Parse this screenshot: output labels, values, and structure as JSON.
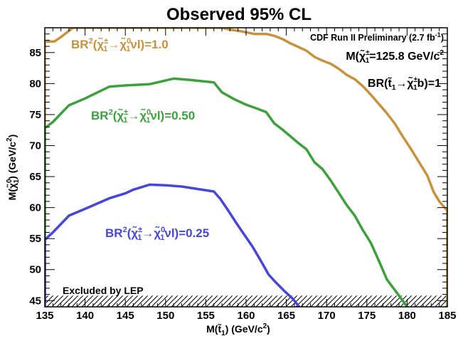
{
  "chart_data": {
    "type": "line",
    "title": "Observed 95% CL",
    "xlabel": "M(t̃1) (GeV/c2)",
    "ylabel": "M(χ̃01) (GeV/c2)",
    "xlim": [
      135,
      185
    ],
    "ylim": [
      44,
      89
    ],
    "xticks": [
      135,
      140,
      145,
      150,
      155,
      160,
      165,
      170,
      175,
      180,
      185
    ],
    "yticks": [
      45,
      50,
      55,
      60,
      65,
      70,
      75,
      80,
      85
    ],
    "grid": false,
    "annotations": {
      "experiment": "CDF Run II Preliminary (2.7 fb",
      "experiment_sup": "-1",
      "experiment_close": ")",
      "chargino_mass": "=125.8 GeV/c",
      "chargino_mass_sup": "2",
      "branching": "b)=1",
      "lep": "Excluded by LEP"
    },
    "excluded_region": {
      "name": "Excluded by LEP",
      "y_max": 45.8
    },
    "series": [
      {
        "name": "BR2(χ̃±1→χ̃01νl)=1.0",
        "label_value": "=1.0",
        "color": "#c8913c",
        "points": [
          [
            135,
            44
          ],
          [
            135,
            86.8
          ],
          [
            136.2,
            86.8
          ],
          [
            137,
            87.5
          ],
          [
            138.5,
            89
          ],
          [
            157,
            89
          ],
          [
            158,
            88.7
          ],
          [
            159.5,
            88.4
          ],
          [
            161,
            88
          ],
          [
            162.5,
            88
          ],
          [
            163.5,
            87.7
          ],
          [
            164.5,
            87.2
          ],
          [
            165.5,
            86.5
          ],
          [
            166.5,
            85.9
          ],
          [
            167.5,
            85.3
          ],
          [
            168.5,
            84.3
          ],
          [
            169.5,
            83.7
          ],
          [
            170.5,
            83.2
          ],
          [
            171.5,
            82.4
          ],
          [
            172.5,
            81.4
          ],
          [
            173.5,
            80.7
          ],
          [
            174.5,
            79.6
          ],
          [
            175.5,
            78.2
          ],
          [
            176.5,
            76.7
          ],
          [
            177.5,
            75.2
          ],
          [
            178.5,
            73.5
          ],
          [
            179.5,
            71.4
          ],
          [
            180.5,
            69.4
          ],
          [
            181.5,
            67.3
          ],
          [
            182.5,
            65.2
          ],
          [
            183.3,
            62.5
          ],
          [
            184,
            61
          ],
          [
            185,
            59.5
          ],
          [
            185,
            44
          ]
        ]
      },
      {
        "name": "BR2(χ̃±1→χ̃01νl)=0.50",
        "label_value": "=0.50",
        "color": "#3ca03c",
        "points": [
          [
            135,
            44
          ],
          [
            135,
            72.8
          ],
          [
            136,
            73.8
          ],
          [
            138,
            76.5
          ],
          [
            140,
            77.6
          ],
          [
            143,
            79.5
          ],
          [
            145,
            79.7
          ],
          [
            148,
            79.9
          ],
          [
            151,
            80.8
          ],
          [
            153,
            80.6
          ],
          [
            156,
            80.2
          ],
          [
            157,
            78.6
          ],
          [
            158.5,
            77.5
          ],
          [
            160,
            76.6
          ],
          [
            161.5,
            75.9
          ],
          [
            162.5,
            75.4
          ],
          [
            163.5,
            73.6
          ],
          [
            164.5,
            72.6
          ],
          [
            165.5,
            71.5
          ],
          [
            166.5,
            70.4
          ],
          [
            167.5,
            69.4
          ],
          [
            168.5,
            67.3
          ],
          [
            169.5,
            66.2
          ],
          [
            170.5,
            64.4
          ],
          [
            171.5,
            62.4
          ],
          [
            172.5,
            60.4
          ],
          [
            173.5,
            58.7
          ],
          [
            174.5,
            56.4
          ],
          [
            175.5,
            54.3
          ],
          [
            176.5,
            51.4
          ],
          [
            177.5,
            48.4
          ],
          [
            179,
            45.8
          ],
          [
            180,
            44
          ]
        ]
      },
      {
        "name": "BR2(χ̃±1→χ̃01νl)=0.25",
        "label_value": "=0.25",
        "color": "#4646dc",
        "points": [
          [
            135,
            44
          ],
          [
            135,
            54.8
          ],
          [
            136,
            56
          ],
          [
            138,
            58.7
          ],
          [
            140,
            59.8
          ],
          [
            143,
            61.5
          ],
          [
            145,
            62.3
          ],
          [
            146,
            62.9
          ],
          [
            148,
            63.7
          ],
          [
            150,
            63.6
          ],
          [
            152,
            63.4
          ],
          [
            154,
            63
          ],
          [
            156,
            62.6
          ],
          [
            156.8,
            61.4
          ],
          [
            157.8,
            59.5
          ],
          [
            158.8,
            57.5
          ],
          [
            159.8,
            55.6
          ],
          [
            160.8,
            53.7
          ],
          [
            161.8,
            51.5
          ],
          [
            162.8,
            49.2
          ],
          [
            163.8,
            47.8
          ],
          [
            164.8,
            46.5
          ],
          [
            165.8,
            45.3
          ],
          [
            166.6,
            44
          ]
        ]
      }
    ]
  }
}
